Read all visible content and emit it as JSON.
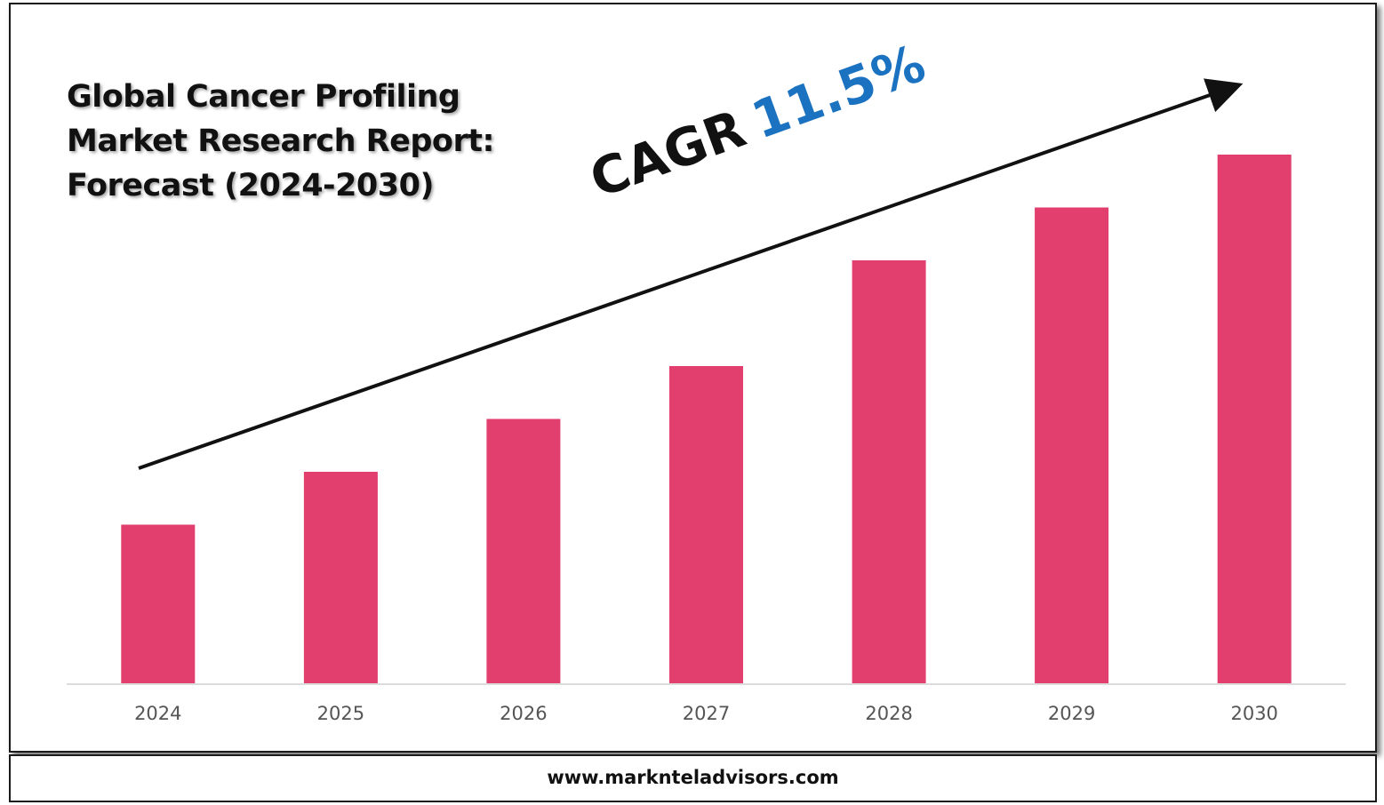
{
  "title_lines": [
    "Global Cancer Profiling",
    "Market Research Report:",
    "Forecast (2024-2030)"
  ],
  "cagr": {
    "label": "CAGR",
    "value": "11.5%"
  },
  "footer": {
    "url": "www.marknteladvisors.com"
  },
  "colors": {
    "bar": "#e23e6e",
    "cagr_value": "#1b72c0",
    "text": "#111111",
    "tick": "#555555"
  },
  "chart_data": {
    "type": "bar",
    "title": "Global Cancer Profiling Market Research Report: Forecast (2024-2030)",
    "categories": [
      "2024",
      "2025",
      "2026",
      "2027",
      "2028",
      "2029",
      "2030"
    ],
    "values": [
      3.0,
      4.0,
      5.0,
      6.0,
      8.0,
      9.0,
      10.0
    ],
    "ylim": [
      0,
      10
    ],
    "xlabel": "",
    "ylabel": "",
    "grid": false,
    "legend": "none",
    "annotation": "CAGR 11.5%"
  }
}
